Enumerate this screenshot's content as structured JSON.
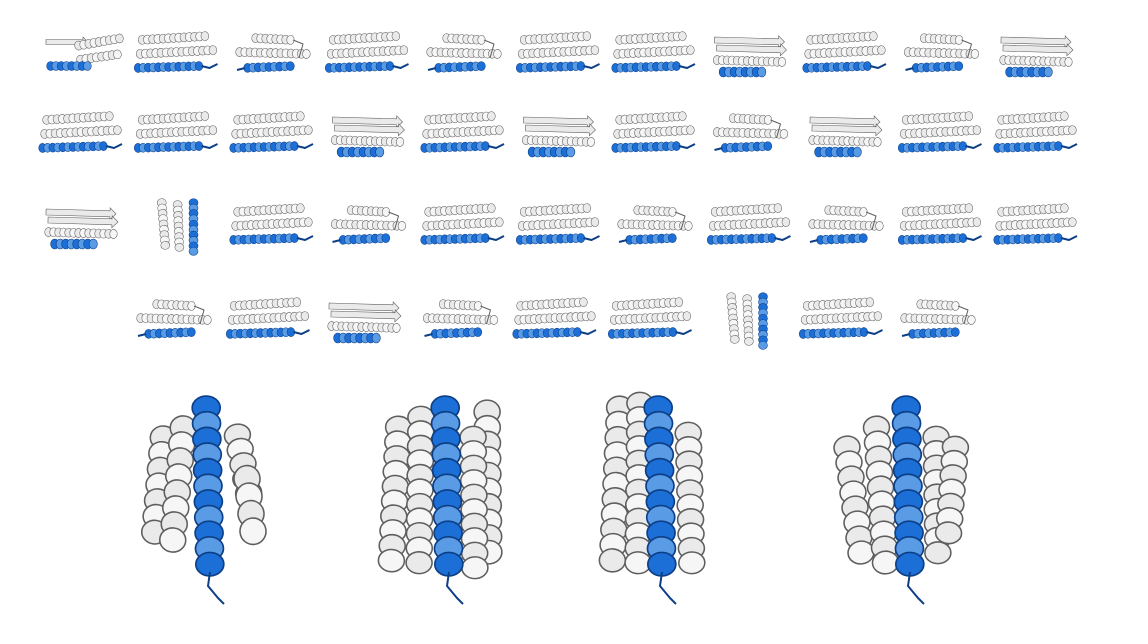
{
  "figure": {
    "colors": {
      "background": "#ffffff",
      "helix_gray_fill": "#eaeaea",
      "helix_gray_stroke": "#5e5e5e",
      "helix_blue_fill": "#1c6fd6",
      "helix_blue_light": "#5a9be6",
      "helix_blue_stroke": "#0d3f86"
    },
    "grid": {
      "rows": [
        {
          "count": 11,
          "motifs": [
            "hairpin",
            "bundle",
            "knot",
            "bundle",
            "knot",
            "bundle",
            "bundle",
            "sheet",
            "bundle",
            "knot",
            "sheet"
          ]
        },
        {
          "count": 11,
          "motifs": [
            "bundle",
            "bundle",
            "bundle",
            "sheet",
            "bundle",
            "sheet",
            "bundle",
            "knot",
            "sheet",
            "bundle",
            "bundle"
          ]
        },
        {
          "count": 11,
          "motifs": [
            "sheet",
            "vertical",
            "bundle",
            "knot",
            "bundle",
            "bundle",
            "knot",
            "bundle",
            "knot",
            "bundle",
            "bundle"
          ]
        },
        {
          "count": 9,
          "motifs": [
            "knot",
            "bundle",
            "sheet",
            "knot",
            "bundle",
            "bundle",
            "vertical",
            "bundle",
            "knot"
          ]
        }
      ]
    },
    "large_structures": [
      {
        "variant": "a",
        "gray_helices": 4
      },
      {
        "variant": "b",
        "gray_helices": 4
      },
      {
        "variant": "c",
        "gray_helices": 3
      },
      {
        "variant": "d",
        "gray_helices": 4
      }
    ]
  }
}
